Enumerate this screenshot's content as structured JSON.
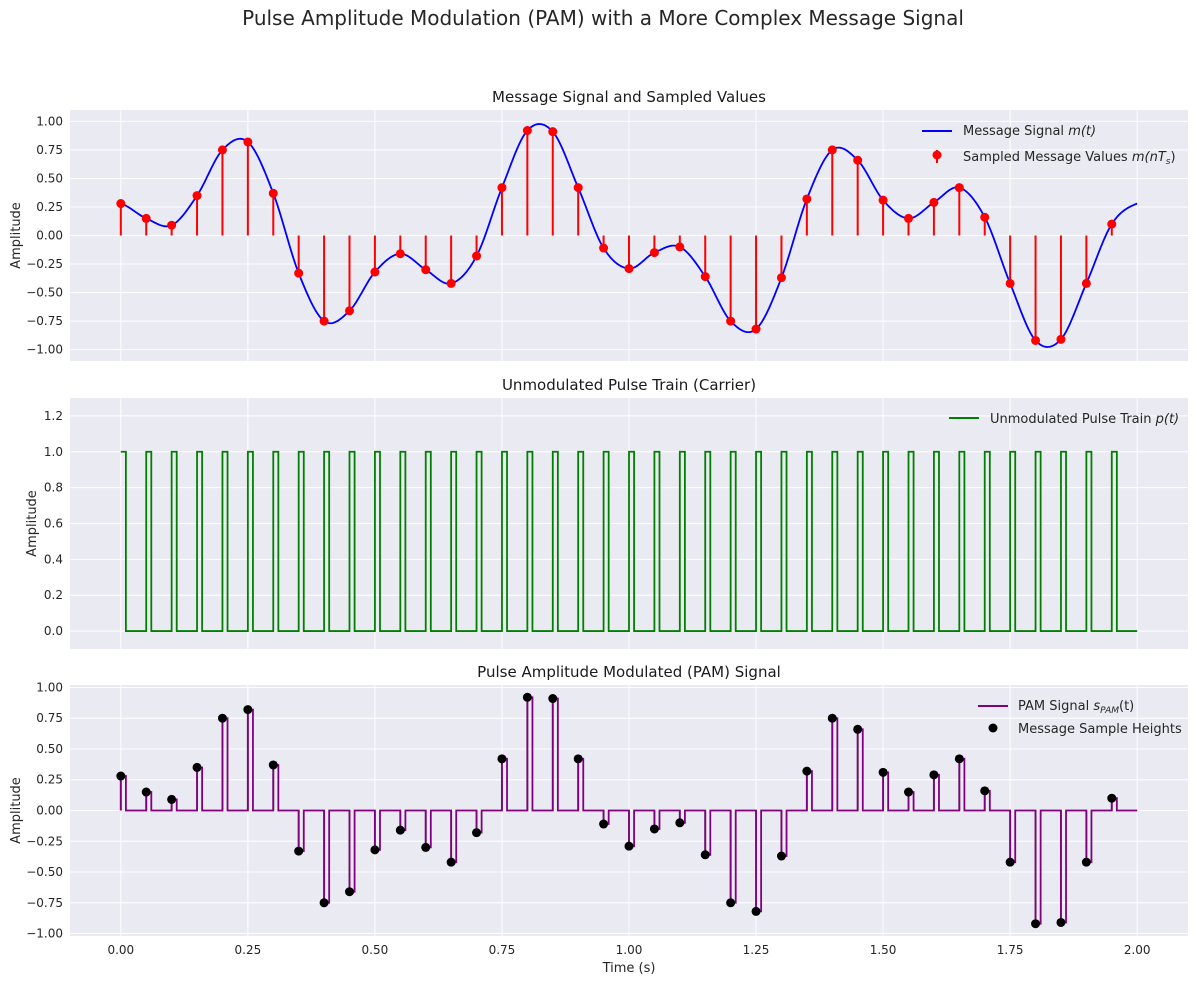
{
  "suptitle": "Pulse Amplitude Modulation (PAM) with a More Complex Message Signal",
  "x_label": "Time (s)",
  "x_ticks": [
    0.0,
    0.25,
    0.5,
    0.75,
    1.0,
    1.25,
    1.5,
    1.75,
    2.0
  ],
  "x_tick_labels": [
    "0.00",
    "0.25",
    "0.50",
    "0.75",
    "1.00",
    "1.25",
    "1.50",
    "1.75",
    "2.00"
  ],
  "colors": {
    "message": "#0000ff",
    "samples": "#ff0000",
    "pulse_train": "#008000",
    "pam": "#800080",
    "pam_stem": "#808080",
    "heights": "#000000"
  },
  "chart_data": [
    {
      "type": "line",
      "title": "Message Signal and Sampled Values",
      "ylabel": "Amplitude",
      "xlim": [
        -0.1,
        2.1
      ],
      "ylim": [
        -1.1,
        1.1
      ],
      "y_ticks": [
        -1.0,
        -0.75,
        -0.5,
        -0.25,
        0.0,
        0.25,
        0.5,
        0.75,
        1.0
      ],
      "y_tick_labels": [
        "−1.00",
        "−0.75",
        "−0.50",
        "−0.25",
        "0.00",
        "0.25",
        "0.50",
        "0.75",
        "1.00"
      ],
      "grid": true,
      "legend": "top-right",
      "series": [
        {
          "name": "Message Signal m(t)",
          "kind": "line",
          "x_range": [
            0,
            2
          ]
        },
        {
          "name": "Sampled Message Values m(nT_s)",
          "kind": "stem",
          "x": [
            0.0,
            0.05,
            0.1,
            0.15,
            0.2,
            0.25,
            0.3,
            0.35,
            0.4,
            0.45,
            0.5,
            0.55,
            0.6,
            0.65,
            0.7,
            0.75,
            0.8,
            0.85,
            0.9,
            0.95,
            1.0,
            1.05,
            1.1,
            1.15,
            1.2,
            1.25,
            1.3,
            1.35,
            1.4,
            1.45,
            1.5,
            1.55,
            1.6,
            1.65,
            1.7,
            1.75,
            1.8,
            1.85,
            1.9,
            1.95
          ],
          "y": [
            0.28,
            0.15,
            0.09,
            0.35,
            0.75,
            0.82,
            0.37,
            -0.33,
            -0.75,
            -0.66,
            -0.32,
            -0.16,
            -0.3,
            -0.42,
            -0.18,
            0.42,
            0.92,
            0.91,
            0.42,
            -0.11,
            -0.29,
            -0.15,
            -0.1,
            -0.36,
            -0.75,
            -0.82,
            -0.37,
            0.32,
            0.75,
            0.66,
            0.31,
            0.15,
            0.29,
            0.42,
            0.16,
            -0.42,
            -0.92,
            -0.91,
            -0.42,
            0.1
          ]
        }
      ]
    },
    {
      "type": "line",
      "title": "Unmodulated Pulse Train (Carrier)",
      "ylabel": "Amplitude",
      "xlim": [
        -0.1,
        2.1
      ],
      "ylim": [
        -0.1,
        1.3
      ],
      "y_ticks": [
        0.0,
        0.2,
        0.4,
        0.6,
        0.8,
        1.0,
        1.2
      ],
      "y_tick_labels": [
        "0.0",
        "0.2",
        "0.4",
        "0.6",
        "0.8",
        "1.0",
        "1.2"
      ],
      "grid": true,
      "legend": "top-right",
      "series": [
        {
          "name": "Unmodulated Pulse Train p(t)",
          "kind": "step",
          "period": 0.05,
          "pulse_width": 0.01,
          "x_range": [
            0,
            2
          ]
        }
      ]
    },
    {
      "type": "line",
      "title": "Pulse Amplitude Modulated (PAM) Signal",
      "ylabel": "Amplitude",
      "xlabel": "Time (s)",
      "xlim": [
        -0.1,
        2.1
      ],
      "ylim": [
        -1.02,
        1.02
      ],
      "y_ticks": [
        -1.0,
        -0.75,
        -0.5,
        -0.25,
        0.0,
        0.25,
        0.5,
        0.75,
        1.0
      ],
      "y_tick_labels": [
        "−1.00",
        "−0.75",
        "−0.50",
        "−0.25",
        "0.00",
        "0.25",
        "0.50",
        "0.75",
        "1.00"
      ],
      "grid": true,
      "legend": "top-right",
      "series": [
        {
          "name": "PAM Signal s_PAM(t)",
          "kind": "pam-step"
        },
        {
          "name": "Message Sample Heights",
          "kind": "scatter"
        }
      ]
    }
  ],
  "legends": {
    "top": [
      {
        "pre": "Message Signal ",
        "math": "m(t)",
        "sub": ""
      },
      {
        "pre": "Sampled Message Values ",
        "math": "m(nT",
        "sub": "s",
        "post": ")"
      }
    ],
    "middle": [
      {
        "pre": "Unmodulated Pulse Train ",
        "math": "p(t)",
        "sub": ""
      }
    ],
    "bottom": [
      {
        "pre": "PAM Signal ",
        "math": "s",
        "sub": "PAM",
        "post": "(t)"
      },
      {
        "pre": "Message Sample Heights",
        "math": "",
        "sub": ""
      }
    ]
  }
}
